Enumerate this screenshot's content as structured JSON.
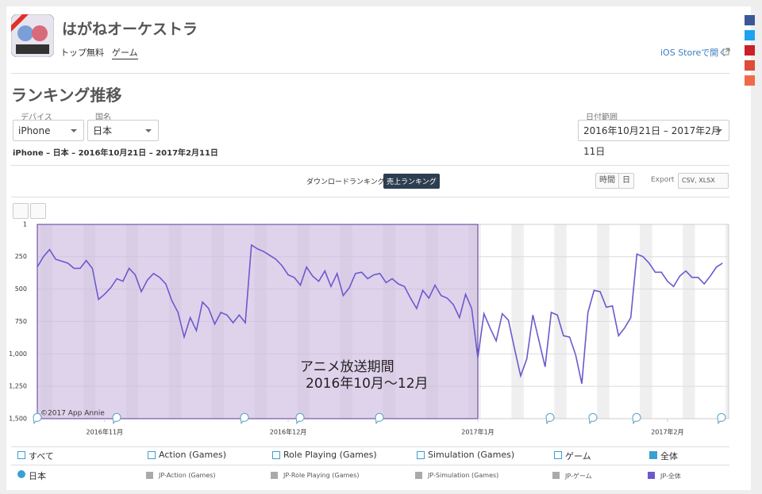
{
  "header": {
    "app_name": "はがねオーケストラ",
    "price_chart": "トップ無料",
    "category": "ゲーム",
    "store_link": "iOS Storeで開く"
  },
  "section_title": "ランキング推移",
  "filters": {
    "device_label": "デバイス",
    "device": "iPhone",
    "country_label": "国名",
    "country": "日本",
    "date_label": "日付範囲",
    "date_range": "2016年10月21日 – 2017年2月11日"
  },
  "summary": "iPhone – 日本 – 2016年10月21日 – 2017年2月11日",
  "tabs": [
    "ダウンロードランキング",
    "売上ランキング"
  ],
  "toolbar": {
    "hourly": "時間",
    "daily": "日",
    "export": "Export",
    "formats": "CSV, XLSX"
  },
  "category_filters": [
    "すべて",
    "Action (Games)",
    "Role Playing (Games)",
    "Simulation (Games)",
    "ゲーム",
    "全体"
  ],
  "country_option": "日本",
  "series_options": [
    "JP-Action (Games)",
    "JP-Role Playing (Games)",
    "JP-Simulation (Games)",
    "JP-ゲーム"
  ],
  "chart_data": {
    "type": "line",
    "credit": "©2017 App Annie",
    "xlim": [
      0,
      113
    ],
    "xticks": [
      {
        "value": 11,
        "label": "2016年11月"
      },
      {
        "value": 41,
        "label": "2016年12月"
      },
      {
        "value": 72,
        "label": "2017年1月"
      },
      {
        "value": 103,
        "label": "2017年2月"
      }
    ],
    "ylim": [
      1500,
      1
    ],
    "yticks": [
      1,
      250,
      500,
      750,
      {
        "value": 1000,
        "label": "1,000"
      },
      {
        "value": 1250,
        "label": "1,250"
      },
      {
        "value": 1500,
        "label": "1,500"
      }
    ],
    "grid": true,
    "highlight": {
      "from": 0,
      "to": 72,
      "color": "#c9b6e0",
      "label": [
        "アニメ放送期間",
        "2016年10月～12月"
      ]
    },
    "series": [
      {
        "name": "JP-全体",
        "color": "#6a5acd",
        "values": [
          330,
          250,
          195,
          270,
          285,
          300,
          340,
          340,
          280,
          340,
          580,
          540,
          490,
          420,
          440,
          340,
          390,
          520,
          430,
          380,
          410,
          460,
          590,
          680,
          870,
          720,
          820,
          600,
          650,
          770,
          680,
          700,
          760,
          700,
          760,
          160,
          190,
          210,
          240,
          270,
          320,
          390,
          410,
          470,
          330,
          400,
          440,
          360,
          480,
          380,
          550,
          490,
          380,
          370,
          420,
          390,
          380,
          450,
          420,
          460,
          480,
          570,
          650,
          510,
          570,
          470,
          550,
          570,
          620,
          720,
          540,
          650,
          1030,
          690,
          800,
          900,
          690,
          740,
          960,
          1170,
          1040,
          700,
          900,
          1100,
          680,
          700,
          860,
          870,
          1010,
          1230,
          680,
          510,
          520,
          640,
          630,
          860,
          800,
          720,
          230,
          250,
          300,
          370,
          370,
          440,
          480,
          400,
          360,
          410,
          410,
          460,
          400,
          330,
          300
        ]
      }
    ]
  }
}
